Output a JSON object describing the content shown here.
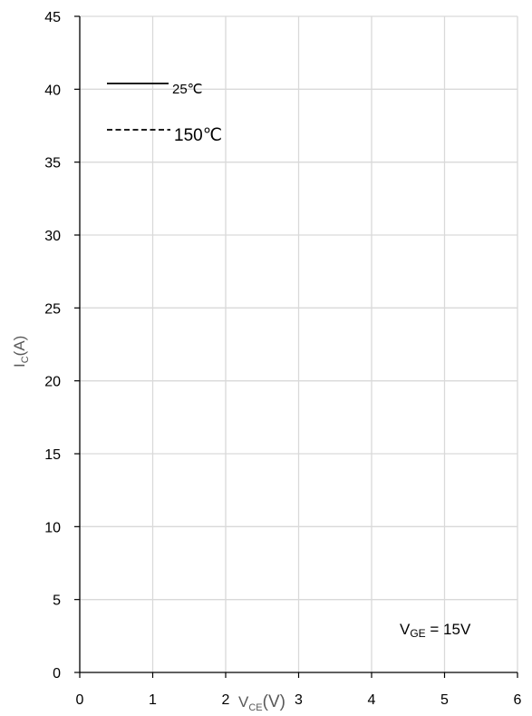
{
  "chart_data": {
    "type": "line",
    "title": "",
    "xlabel": {
      "main": "V",
      "sub": "CE",
      "unit": "(V)"
    },
    "ylabel": {
      "main": "I",
      "sub": "C",
      "unit": "(A)"
    },
    "xlim": [
      0,
      6
    ],
    "ylim": [
      0,
      45
    ],
    "x_ticks": [
      "0",
      "1",
      "2",
      "3",
      "4",
      "5",
      "6"
    ],
    "y_ticks": [
      "0",
      "5",
      "10",
      "15",
      "20",
      "25",
      "30",
      "35",
      "40",
      "45"
    ],
    "grid": true,
    "legend_position": "top-left",
    "series": [
      {
        "name": "25℃",
        "line_style": "solid",
        "color": "#000000",
        "points": []
      },
      {
        "name": "150℃",
        "line_style": "dashed",
        "color": "#000000",
        "points": []
      }
    ],
    "annotation": {
      "main": "V",
      "sub": "GE",
      "rest": " = 15V"
    }
  },
  "colors": {
    "grid": "#d9d9d9",
    "axis": "#000000",
    "axis_title": "#595959"
  }
}
